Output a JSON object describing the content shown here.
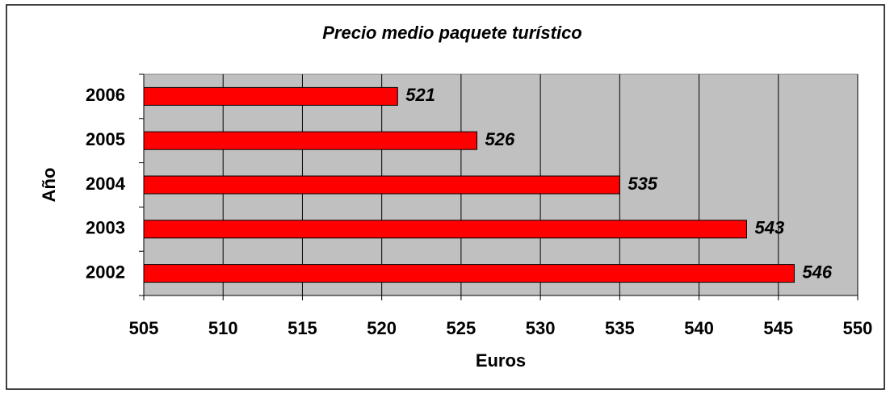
{
  "chart_data": {
    "type": "bar",
    "orientation": "horizontal",
    "title": "Precio medio paquete turístico",
    "x_label": "Euros",
    "y_label": "Año",
    "categories": [
      "2002",
      "2003",
      "2004",
      "2005",
      "2006"
    ],
    "values": [
      546,
      543,
      535,
      526,
      521
    ],
    "color": "#ff0000",
    "xlim": [
      505,
      550
    ],
    "xticks": [
      505,
      510,
      515,
      520,
      525,
      530,
      535,
      540,
      545,
      550
    ],
    "grid": true
  }
}
